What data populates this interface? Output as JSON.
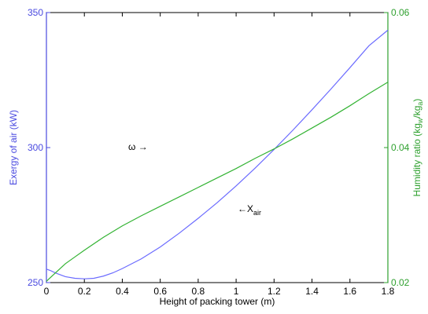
{
  "chart_data": {
    "type": "line",
    "xlabel": "Height of packing tower (m)",
    "ylabel_left": "Exergy of air (kW)",
    "ylabel_right": "Humidity ratio (kg",
    "ylabel_right_sub1": "w",
    "ylabel_right_mid": "/kg",
    "ylabel_right_sub2": "a",
    "ylabel_right_end": ")",
    "xlim": [
      0,
      1.8
    ],
    "ylim_left": [
      250,
      350
    ],
    "ylim_right": [
      0.02,
      0.06
    ],
    "x_ticks": [
      "0",
      "0.2",
      "0.4",
      "0.6",
      "0.8",
      "1",
      "1.2",
      "1.4",
      "1.6",
      "1.8"
    ],
    "y_ticks_left": [
      "250",
      "300",
      "350"
    ],
    "y_ticks_right": [
      "0.02",
      "0.04",
      "0.06"
    ],
    "colors": {
      "left_axis": "#4a4ae0",
      "right_axis": "#2ea02e",
      "exergy": "#6b6bff",
      "humidity": "#33b333"
    },
    "annotations": {
      "omega_text": "ω →",
      "xair_arrow": "←X",
      "xair_sub": "air"
    },
    "series": [
      {
        "axis": "left",
        "x": [
          0,
          0.02,
          0.05,
          0.1,
          0.15,
          0.2,
          0.25,
          0.3,
          0.35,
          0.4,
          0.5,
          0.6,
          0.7,
          0.8,
          0.9,
          1.0,
          1.1,
          1.2,
          1.3,
          1.4,
          1.5,
          1.6,
          1.7,
          1.8
        ],
        "y": [
          255,
          254.5,
          253.5,
          252.2,
          251.6,
          251.4,
          251.6,
          252.4,
          253.6,
          255.2,
          258.8,
          263.2,
          268.3,
          273.8,
          279.6,
          285.8,
          292.4,
          299.3,
          306.5,
          314.0,
          321.7,
          329.6,
          337.7,
          343.5
        ]
      },
      {
        "axis": "right",
        "x": [
          0,
          0.05,
          0.1,
          0.15,
          0.2,
          0.3,
          0.4,
          0.5,
          0.6,
          0.7,
          0.8,
          0.9,
          1.0,
          1.1,
          1.2,
          1.3,
          1.4,
          1.5,
          1.6,
          1.7,
          1.8
        ],
        "y": [
          0.0202,
          0.0215,
          0.0228,
          0.0238,
          0.0248,
          0.0267,
          0.0284,
          0.0299,
          0.0313,
          0.0327,
          0.0341,
          0.0355,
          0.0369,
          0.0384,
          0.0398,
          0.0413,
          0.0429,
          0.0445,
          0.0462,
          0.048,
          0.0497
        ]
      }
    ]
  }
}
